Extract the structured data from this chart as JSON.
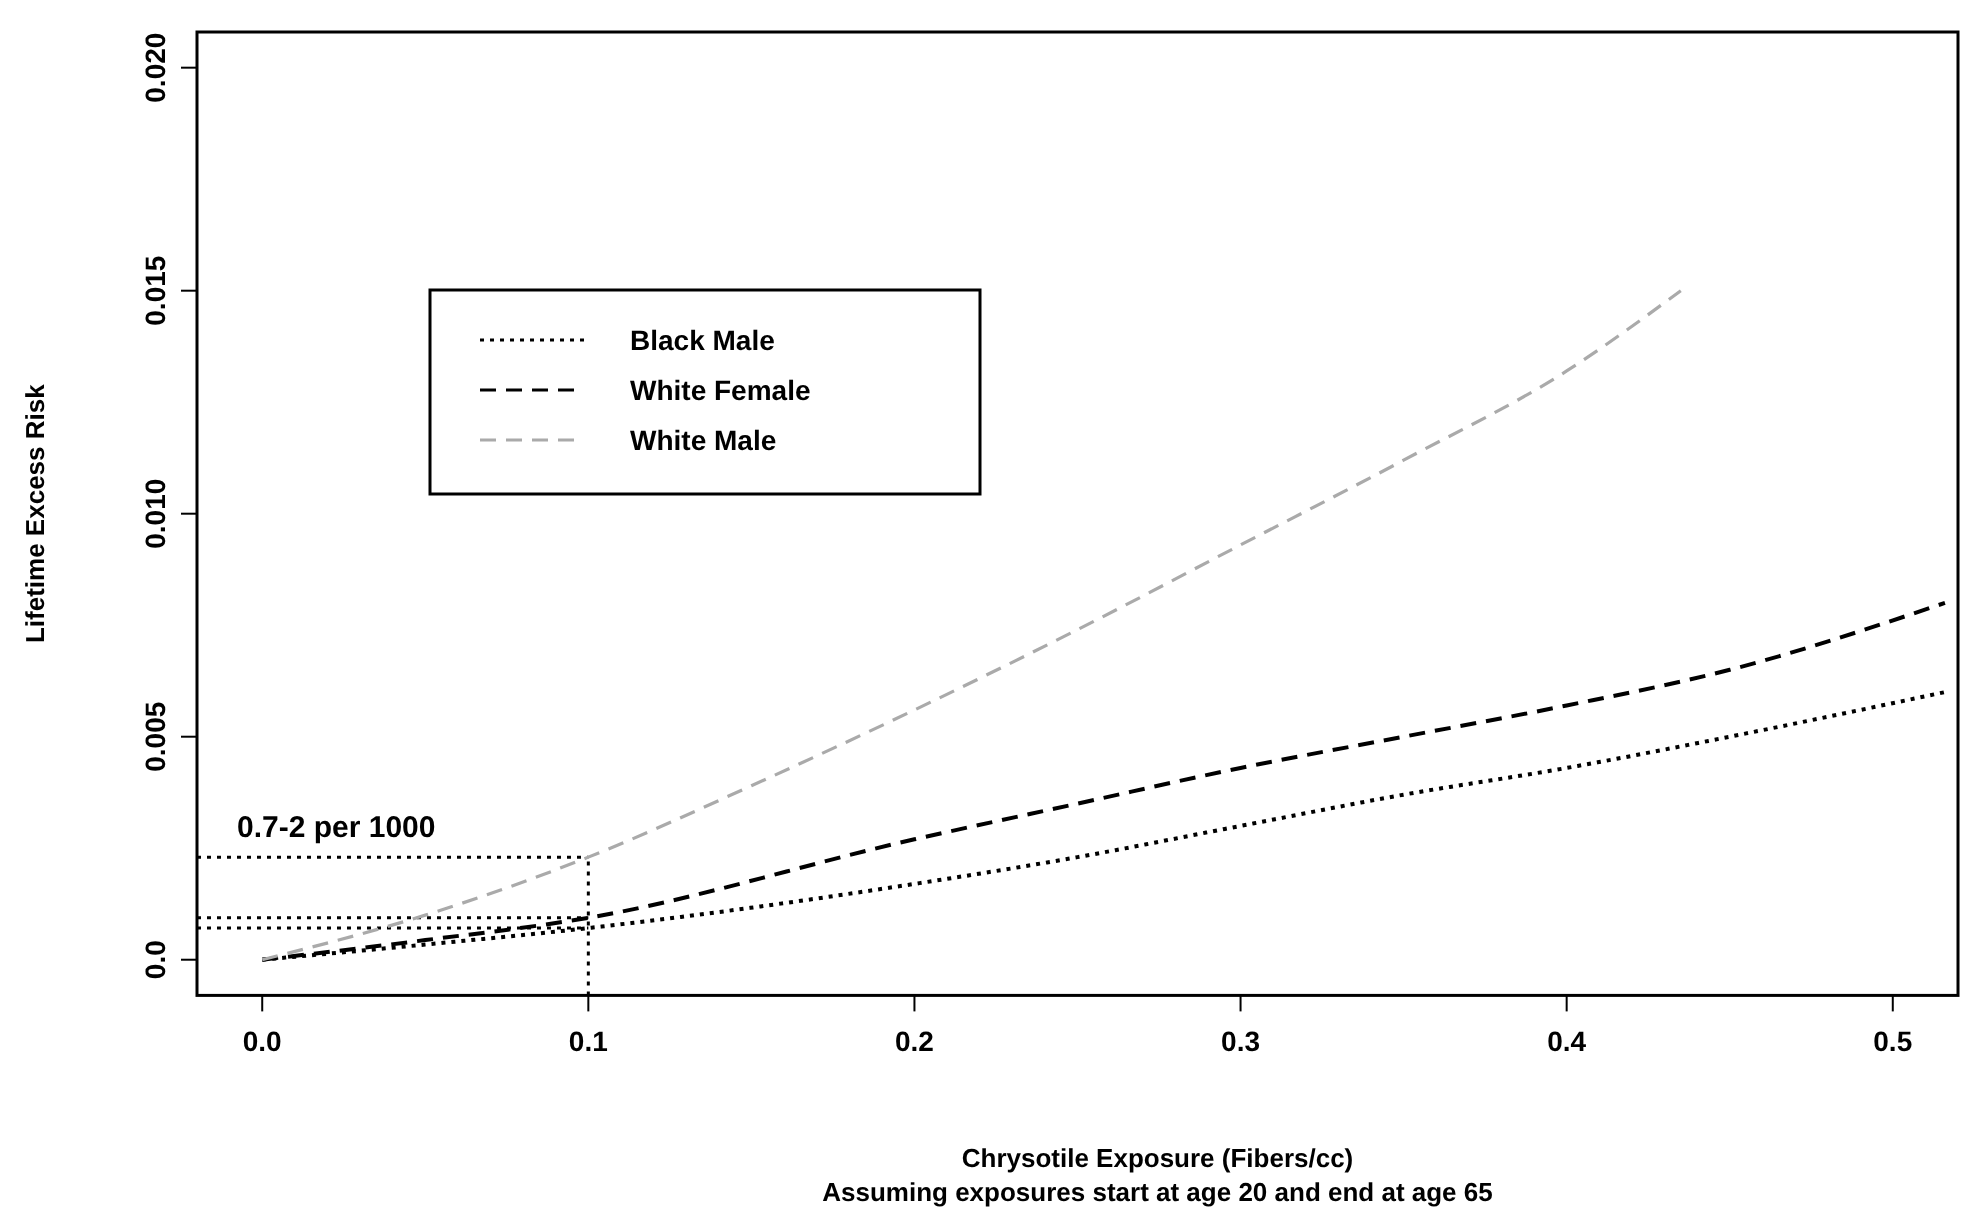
{
  "chart_data": {
    "type": "line",
    "xlabel": "Chrysotile Exposure (Fibers/cc)",
    "ylabel": "Lifetime Excess Risk",
    "annotations": [
      "Assuming exposures start at age 20 and end at age 65"
    ],
    "xlim": [
      -0.02,
      0.52
    ],
    "xticks": [
      {
        "value": 0,
        "label": "0.0"
      },
      0.1,
      0.2,
      0.3,
      0.4,
      0.5
    ],
    "ylim": [
      -0.0008,
      0.0208
    ],
    "yticks": [
      {
        "value": 0,
        "label": "0.0"
      },
      0.005,
      {
        "value": 0.01,
        "label": "0.010"
      },
      0.015,
      {
        "value": 0.02,
        "label": "0.020"
      }
    ],
    "grid": false,
    "legend": "top left",
    "marker": "none",
    "ref_lines": [
      {
        "axis": "y",
        "value": 0.0023,
        "label": "0.7-2 per 1000",
        "line_style": "dotted",
        "color": "#000000"
      },
      {
        "axis": "y",
        "value": 0.00094,
        "label": null,
        "line_style": "dotted",
        "color": "#000000"
      },
      {
        "axis": "y",
        "value": 0.00071,
        "label": null,
        "line_style": "dotted",
        "color": "#000000"
      },
      {
        "axis": "x",
        "value": 0.1,
        "label": null,
        "line_style": "dotted",
        "color": "#000000"
      }
    ],
    "series": [
      {
        "name": "Black Male",
        "color": "#000000",
        "line_style": "dotted",
        "x": [
          0,
          0.05,
          0.1,
          0.2,
          0.25,
          0.3,
          0.35,
          0.4,
          0.45,
          0.516
        ],
        "values": [
          0,
          0.00034,
          0.00071,
          0.0017,
          0.0023,
          0.003,
          0.0037,
          0.0043,
          0.005,
          0.006
        ]
      },
      {
        "name": "White Female",
        "color": "#000000",
        "line_style": "dashed",
        "x": [
          0,
          0.05,
          0.1,
          0.2,
          0.25,
          0.3,
          0.35,
          0.4,
          0.45,
          0.516
        ],
        "values": [
          0,
          0.00044,
          0.00094,
          0.0027,
          0.0035,
          0.0043,
          0.005,
          0.0057,
          0.0065,
          0.008
        ]
      },
      {
        "name": "White Male",
        "color": "#aaaaaa",
        "line_style": "dashed",
        "x": [
          0,
          0.05,
          0.1,
          0.15,
          0.2,
          0.25,
          0.3,
          0.35,
          0.4,
          0.435
        ],
        "values": [
          0,
          0.001,
          0.0023,
          0.0039,
          0.0056,
          0.0074,
          0.0093,
          0.0112,
          0.0132,
          0.015
        ]
      }
    ]
  }
}
